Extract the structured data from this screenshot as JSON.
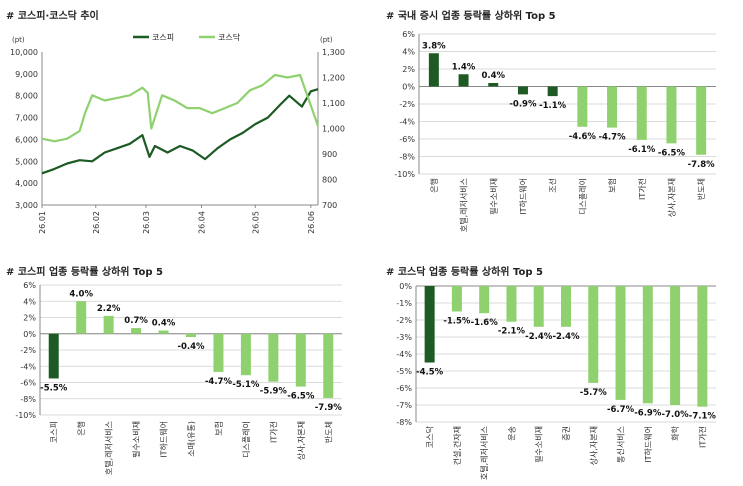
{
  "colors": {
    "dark": "#1d5a24",
    "light": "#8fd16f",
    "grid": "#cfcfcf",
    "axis": "#888888"
  },
  "chart_data": [
    {
      "id": "p1",
      "type": "line",
      "title": "# 코스피·코스닥 추이",
      "left_unit": "(pt)",
      "right_unit": "(pt)",
      "left_ticks": [
        "10,000",
        "9,000",
        "8,000",
        "7,000",
        "6,000",
        "5,000",
        "4,000",
        "3,000"
      ],
      "right_ticks": [
        "1,300",
        "1,200",
        "1,100",
        "1,000",
        "900",
        "800",
        "700"
      ],
      "x_ticks": [
        "26.01",
        "26.02",
        "26.03",
        "26.04",
        "26.05",
        "26.06"
      ],
      "ylim_left": [
        3000,
        10000
      ],
      "ylim_right": [
        700,
        1300
      ],
      "x_range": [
        "2026-01-02",
        "2026-06-05"
      ],
      "series": [
        {
          "name": "코스피",
          "axis": "left",
          "x": [
            "2026-01-02",
            "2026-01-09",
            "2026-01-16",
            "2026-01-23",
            "2026-01-30",
            "2026-02-06",
            "2026-02-13",
            "2026-02-20",
            "2026-02-27",
            "2026-03-03",
            "2026-03-06",
            "2026-03-13",
            "2026-03-20",
            "2026-03-27",
            "2026-04-03",
            "2026-04-10",
            "2026-04-17",
            "2026-04-24",
            "2026-05-01",
            "2026-05-08",
            "2026-05-15",
            "2026-05-20",
            "2026-05-27",
            "2026-06-01",
            "2026-06-05"
          ],
          "y": [
            4450,
            4650,
            4900,
            5050,
            5000,
            5400,
            5600,
            5800,
            6200,
            5200,
            5700,
            5400,
            5700,
            5500,
            5100,
            5600,
            6000,
            6300,
            6700,
            7000,
            7600,
            8000,
            7500,
            8200,
            8300
          ]
        },
        {
          "name": "코스닥",
          "axis": "right",
          "x": [
            "2026-01-02",
            "2026-01-09",
            "2026-01-16",
            "2026-01-23",
            "2026-01-26",
            "2026-01-30",
            "2026-02-06",
            "2026-02-13",
            "2026-02-20",
            "2026-02-27",
            "2026-03-02",
            "2026-03-04",
            "2026-03-10",
            "2026-03-17",
            "2026-03-24",
            "2026-03-31",
            "2026-04-07",
            "2026-04-14",
            "2026-04-21",
            "2026-04-28",
            "2026-05-05",
            "2026-05-12",
            "2026-05-19",
            "2026-05-26",
            "2026-06-01",
            "2026-06-05"
          ],
          "y": [
            960,
            950,
            960,
            990,
            1060,
            1130,
            1110,
            1120,
            1130,
            1160,
            1140,
            1000,
            1130,
            1110,
            1080,
            1080,
            1060,
            1080,
            1100,
            1150,
            1170,
            1210,
            1200,
            1210,
            1090,
            1010
          ]
        }
      ]
    },
    {
      "id": "p2",
      "type": "bar",
      "title": "# 국내 증시 업종 등락률 상하위 Top 5",
      "ylim": [
        -10,
        6
      ],
      "y_ticks": [
        "6%",
        "4%",
        "2%",
        "0%",
        "-2%",
        "-4%",
        "-6%",
        "-8%",
        "-10%"
      ],
      "categories": [
        "은행",
        "호텔,레저서비스",
        "필수소비재",
        "IT하드웨어",
        "조선",
        "디스플레이",
        "보험",
        "IT가전",
        "상사,자본재",
        "반도체"
      ],
      "values": [
        3.8,
        1.4,
        0.4,
        -0.9,
        -1.1,
        -4.6,
        -4.7,
        -6.1,
        -6.5,
        -7.8
      ],
      "labels": [
        "3.8%",
        "1.4%",
        "0.4%",
        "-0.9%",
        "-1.1%",
        "-4.6%",
        "-4.7%",
        "-6.1%",
        "-6.5%",
        "-7.8%"
      ],
      "colors": [
        "dark",
        "dark",
        "dark",
        "dark",
        "dark",
        "light",
        "light",
        "light",
        "light",
        "light"
      ]
    },
    {
      "id": "p3",
      "type": "bar",
      "title": "# 코스피 업종 등락률 상하위 Top 5",
      "ylim": [
        -10,
        6
      ],
      "y_ticks": [
        "6%",
        "4%",
        "2%",
        "0%",
        "-2%",
        "-4%",
        "-6%",
        "-8%",
        "-10%"
      ],
      "categories": [
        "코스피",
        "은행",
        "호텔,레저서비스",
        "필수소비재",
        "IT하드웨어",
        "소매(유통)",
        "보험",
        "디스플레이",
        "IT가전",
        "상사,자본재",
        "반도체"
      ],
      "values": [
        -5.5,
        4.0,
        2.2,
        0.7,
        0.4,
        -0.4,
        -4.7,
        -5.1,
        -5.9,
        -6.5,
        -7.9
      ],
      "labels": [
        "-5.5%",
        "4.0%",
        "2.2%",
        "0.7%",
        "0.4%",
        "-0.4%",
        "-4.7%",
        "-5.1%",
        "-5.9%",
        "-6.5%",
        "-7.9%"
      ],
      "colors": [
        "dark",
        "light",
        "light",
        "light",
        "light",
        "light",
        "light",
        "light",
        "light",
        "light",
        "light"
      ]
    },
    {
      "id": "p4",
      "type": "bar",
      "title": "# 코스닥 업종 등락률 상하위 Top 5",
      "ylim": [
        -8,
        0
      ],
      "y_ticks": [
        "0%",
        "-1%",
        "-2%",
        "-3%",
        "-4%",
        "-5%",
        "-6%",
        "-7%",
        "-8%"
      ],
      "categories": [
        "코스닥",
        "건설,건자재",
        "호텔,레저서비스",
        "운송",
        "필수소비재",
        "증권",
        "상사,자본재",
        "통신서비스",
        "IT하드웨어",
        "화학",
        "IT가전"
      ],
      "values": [
        -4.5,
        -1.5,
        -1.6,
        -2.1,
        -2.4,
        -2.4,
        -5.7,
        -6.7,
        -6.9,
        -7.0,
        -7.1
      ],
      "labels": [
        "-4.5%",
        "-1.5%",
        "-1.6%",
        "-2.1%",
        "-2.4%",
        "-2.4%",
        "-5.7%",
        "-6.7%",
        "-6.9%",
        "-7.0%",
        "-7.1%"
      ],
      "colors": [
        "dark",
        "light",
        "light",
        "light",
        "light",
        "light",
        "light",
        "light",
        "light",
        "light",
        "light"
      ]
    }
  ]
}
